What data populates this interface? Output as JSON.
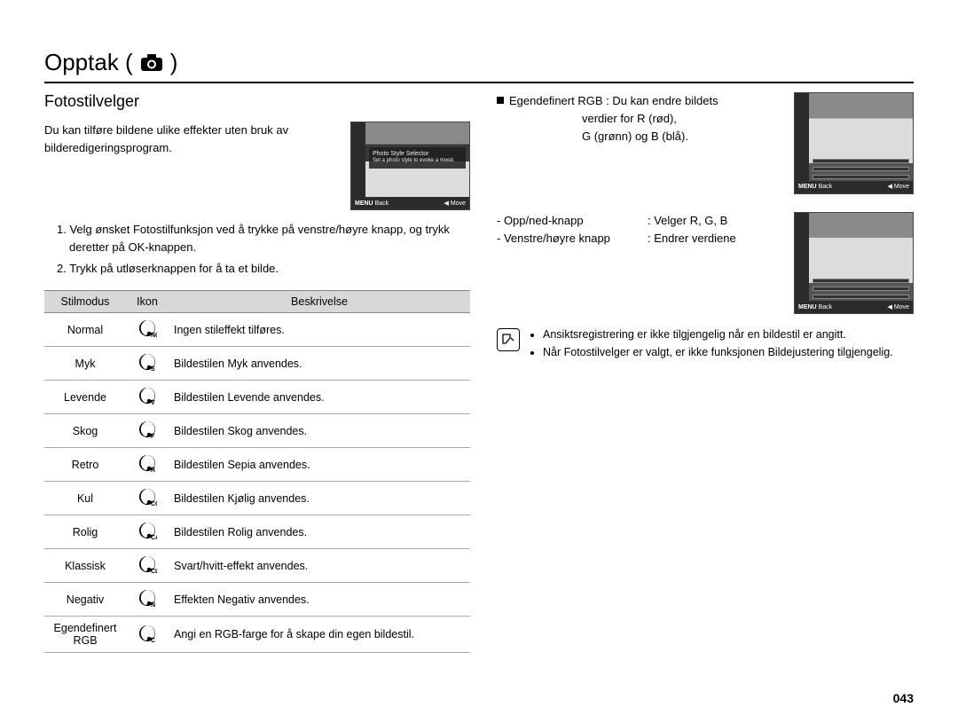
{
  "page": {
    "title_prefix": "Opptak (",
    "title_suffix": " )",
    "number": "043"
  },
  "left": {
    "heading": "Fotostilvelger",
    "intro": "Du kan tilføre bildene ulike effekter uten bruk av bilderedigeringsprogram.",
    "thumb": {
      "msg_title": "Photo Style Selector",
      "msg_sub": "Set a photo style to evoke a mood.",
      "footer_back_label": "MENU",
      "footer_back": "Back",
      "footer_move": "Move"
    },
    "steps": [
      "1. Velg ønsket Fotostilfunksjon ved å trykke på venstre/høyre knapp, og trykk deretter på OK-knappen.",
      "2. Trykk på utløserknappen for å ta et bilde."
    ],
    "table": {
      "headers": {
        "mode": "Stilmodus",
        "icon": "Ikon",
        "desc": "Beskrivelse"
      },
      "rows": [
        {
          "mode": "Normal",
          "sub": "NOR",
          "desc": "Ingen stileffekt tilføres."
        },
        {
          "mode": "Myk",
          "sub": "S",
          "desc": "Bildestilen Myk anvendes."
        },
        {
          "mode": "Levende",
          "sub": "V",
          "desc": "Bildestilen Levende anvendes."
        },
        {
          "mode": "Skog",
          "sub": "F",
          "desc": "Bildestilen Skog anvendes."
        },
        {
          "mode": "Retro",
          "sub": "R",
          "desc": "Bildestilen Sepia anvendes."
        },
        {
          "mode": "Kul",
          "sub": "CO",
          "desc": "Bildestilen Kjølig anvendes."
        },
        {
          "mode": "Rolig",
          "sub": "CA",
          "desc": "Bildestilen Rolig anvendes."
        },
        {
          "mode": "Klassisk",
          "sub": "CL",
          "desc": "Svart/hvitt-effekt anvendes."
        },
        {
          "mode": "Negativ",
          "sub": "N",
          "desc": "Effekten Negativ anvendes."
        },
        {
          "mode": "Egendefinert RGB",
          "sub": "C",
          "desc": "Angi en RGB-farge for å skape din egen bildestil."
        }
      ]
    }
  },
  "right": {
    "rgb": {
      "lead": "Egendefinert RGB : Du kan endre bildets",
      "line2": "verdier for R (rød),",
      "line3": "G (grønn) og B (blå)."
    },
    "thumb": {
      "footer_back_label": "MENU",
      "footer_back": "Back",
      "footer_move": "Move"
    },
    "kv": [
      {
        "k": "- Opp/ned-knapp",
        "v": ": Velger R, G, B"
      },
      {
        "k": "- Venstre/høyre knapp",
        "v": ": Endrer verdiene"
      }
    ],
    "notes": [
      "Ansiktsregistrering er ikke tilgjengelig når en bildestil er angitt.",
      "Når Fotostilvelger er valgt, er ikke funksjonen Bildejustering tilgjengelig."
    ]
  }
}
